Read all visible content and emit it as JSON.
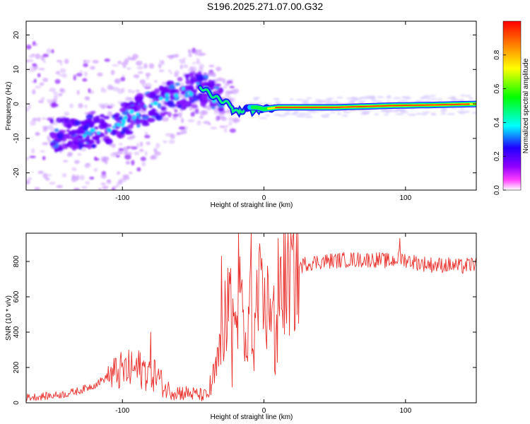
{
  "title": "S196.2025.271.07.00.G32",
  "chart_data": [
    {
      "type": "heatmap",
      "title": "S196.2025.271.07.00.G32",
      "xlabel": "Height of straight line (km)",
      "ylabel": "Frequency (Hz)",
      "xlim": [
        -168,
        150
      ],
      "ylim": [
        -25,
        24
      ],
      "xticks": [
        -100,
        0,
        100
      ],
      "yticks": [
        -20,
        -10,
        0,
        10,
        20
      ],
      "colorbar": {
        "label": "Normalized spectral amplitude",
        "range": [
          0.0,
          1.0
        ],
        "ticks": [
          "0.0",
          "0.2",
          "0.4",
          "0.6",
          "0.8"
        ],
        "tick_values": [
          0.0,
          0.2,
          0.4,
          0.6,
          0.8
        ],
        "colors": [
          "#ffffff",
          "#ff00ff",
          "#8000ff",
          "#0000ff",
          "#00ffff",
          "#00ff00",
          "#ffff00",
          "#ff0000"
        ]
      },
      "ridge": {
        "height": [
          -140,
          -120,
          -100,
          -80,
          -60,
          -45,
          -35,
          -25,
          -20,
          -15,
          -10,
          -5,
          0,
          10,
          50,
          90,
          120,
          150
        ],
        "frequency": [
          -9,
          -8,
          -5,
          -1,
          3,
          5,
          2,
          0,
          -1,
          -2,
          -1,
          -1,
          -1.5,
          -1,
          -1,
          -0.5,
          -0.3,
          0
        ]
      }
    },
    {
      "type": "line",
      "xlabel": "Height of straight line (km)",
      "ylabel": "SNR (10 * v/v)",
      "xlim": [
        -168,
        150
      ],
      "ylim": [
        0,
        960
      ],
      "xticks": [
        -100,
        0,
        100
      ],
      "yticks": [
        0,
        200,
        400,
        600,
        800
      ],
      "color": "#e8302c",
      "series": [
        {
          "name": "SNR",
          "x": [
            -168,
            -150,
            -140,
            -130,
            -120,
            -110,
            -100,
            -90,
            -80,
            -75,
            -70,
            -60,
            -50,
            -40,
            -35,
            -30,
            -28,
            -25,
            -20,
            -18,
            -15,
            -12,
            -10,
            -8,
            -5,
            -3,
            0,
            5,
            8,
            10,
            15,
            20,
            25,
            30,
            40,
            60,
            80,
            90,
            95,
            100,
            110,
            120,
            130,
            140,
            150
          ],
          "y": [
            30,
            40,
            50,
            70,
            100,
            150,
            180,
            190,
            180,
            150,
            80,
            60,
            50,
            40,
            150,
            300,
            450,
            600,
            400,
            700,
            500,
            250,
            600,
            350,
            450,
            600,
            500,
            600,
            550,
            650,
            700,
            730,
            770,
            790,
            800,
            810,
            810,
            800,
            820,
            810,
            790,
            780,
            780,
            770,
            790
          ],
          "spikes": [
            [
              -80,
              400
            ],
            [
              -30,
              830
            ],
            [
              -9,
              960
            ],
            [
              -5,
              750
            ],
            [
              8,
              160
            ],
            [
              96,
              930
            ]
          ]
        }
      ]
    }
  ]
}
